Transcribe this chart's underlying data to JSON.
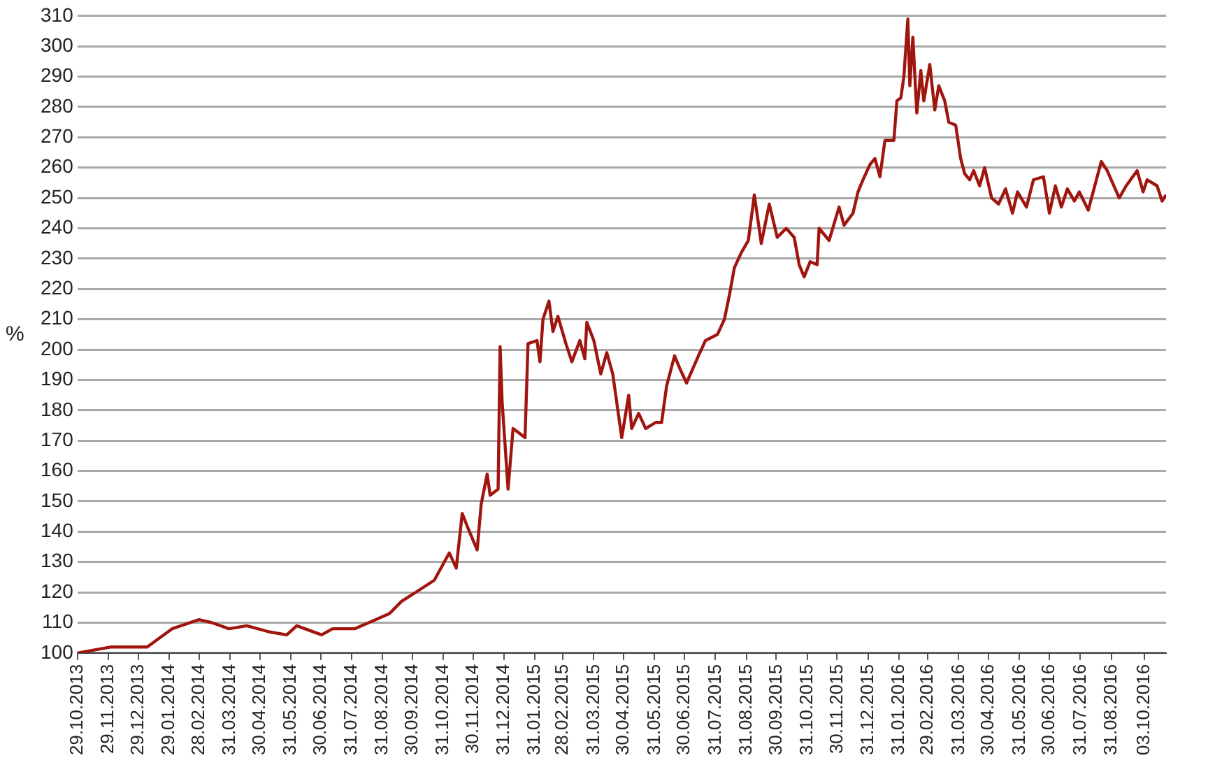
{
  "chart_data": {
    "type": "line",
    "ylabel": "%",
    "x": [
      "2013-10-29",
      "2013-12-02",
      "2013-12-26",
      "2014-01-07",
      "2014-02-01",
      "2014-02-28",
      "2014-03-13",
      "2014-03-30",
      "2014-04-17",
      "2014-05-09",
      "2014-05-27",
      "2014-06-06",
      "2014-07-01",
      "2014-07-12",
      "2014-08-03",
      "2014-08-24",
      "2014-09-07",
      "2014-09-19",
      "2014-10-08",
      "2014-10-22",
      "2014-11-06",
      "2014-11-13",
      "2014-11-19",
      "2014-11-25",
      "2014-12-04",
      "2014-12-08",
      "2014-12-14",
      "2014-12-17",
      "2014-12-25",
      "2014-12-27",
      "2014-12-29",
      "2015-01-04",
      "2015-01-09",
      "2015-01-21",
      "2015-01-24",
      "2015-02-02",
      "2015-02-05",
      "2015-02-08",
      "2015-02-14",
      "2015-02-18",
      "2015-02-23",
      "2015-03-03",
      "2015-03-09",
      "2015-03-17",
      "2015-03-22",
      "2015-03-24",
      "2015-03-31",
      "2015-04-07",
      "2015-04-13",
      "2015-04-19",
      "2015-04-28",
      "2015-05-05",
      "2015-05-08",
      "2015-05-15",
      "2015-05-22",
      "2015-06-01",
      "2015-06-07",
      "2015-06-12",
      "2015-06-20",
      "2015-06-25",
      "2015-07-02",
      "2015-07-14",
      "2015-07-21",
      "2015-08-02",
      "2015-08-09",
      "2015-08-14",
      "2015-08-19",
      "2015-08-26",
      "2015-09-02",
      "2015-09-08",
      "2015-09-15",
      "2015-09-23",
      "2015-10-01",
      "2015-10-10",
      "2015-10-18",
      "2015-10-23",
      "2015-10-28",
      "2015-11-03",
      "2015-11-10",
      "2015-11-12",
      "2015-11-22",
      "2015-12-02",
      "2015-12-07",
      "2015-12-16",
      "2015-12-21",
      "2015-12-26",
      "2016-01-02",
      "2016-01-07",
      "2016-01-12",
      "2016-01-17",
      "2016-01-26",
      "2016-01-29",
      "2016-02-02",
      "2016-02-05",
      "2016-02-09",
      "2016-02-11",
      "2016-02-14",
      "2016-02-18",
      "2016-02-22",
      "2016-02-25",
      "2016-03-02",
      "2016-03-07",
      "2016-03-11",
      "2016-03-17",
      "2016-03-21",
      "2016-03-28",
      "2016-04-02",
      "2016-04-06",
      "2016-04-11",
      "2016-04-15",
      "2016-04-21",
      "2016-04-26",
      "2016-05-03",
      "2016-05-10",
      "2016-05-17",
      "2016-05-24",
      "2016-05-29",
      "2016-06-07",
      "2016-06-14",
      "2016-06-24",
      "2016-06-30",
      "2016-07-06",
      "2016-07-12",
      "2016-07-18",
      "2016-07-25",
      "2016-07-30",
      "2016-08-08",
      "2016-08-21",
      "2016-08-27",
      "2016-09-08",
      "2016-09-15",
      "2016-09-26",
      "2016-10-02",
      "2016-10-06",
      "2016-10-16",
      "2016-10-21",
      "2016-10-25"
    ],
    "series": [
      {
        "color": "#a0160f",
        "values": [
          100,
          102,
          102,
          102,
          108,
          111,
          110,
          108,
          109,
          107,
          106,
          109,
          106,
          108,
          108,
          111,
          113,
          117,
          121,
          124,
          133,
          128,
          146,
          141,
          134,
          149,
          159,
          152,
          154,
          201,
          183,
          154,
          174,
          171,
          202,
          203,
          196,
          210,
          216,
          206,
          211,
          202,
          196,
          203,
          197,
          209,
          203,
          192,
          199,
          192,
          171,
          185,
          174,
          179,
          174,
          176,
          176,
          188,
          198,
          194,
          189,
          198,
          203,
          205,
          210,
          218,
          227,
          232,
          236,
          251,
          235,
          248,
          237,
          240,
          237,
          228,
          224,
          229,
          228,
          240,
          236,
          247,
          241,
          245,
          252,
          256,
          261,
          263,
          257,
          269,
          269,
          282,
          283,
          290,
          309,
          287,
          303,
          278,
          292,
          282,
          294,
          279,
          287,
          282,
          275,
          274,
          263,
          258,
          256,
          259,
          254,
          260,
          250,
          248,
          253,
          245,
          252,
          247,
          256,
          257,
          245,
          254,
          247,
          253,
          249,
          252,
          246,
          262,
          259,
          250,
          254,
          259,
          252,
          256,
          254,
          249,
          251
        ]
      }
    ],
    "xlim": [
      "2013-10-29",
      "2016-10-25"
    ],
    "xticks": [
      {
        "value": "2013-10-29",
        "label": "29.10.2013"
      },
      {
        "value": "2013-11-29",
        "label": "29.11.2013"
      },
      {
        "value": "2013-12-29",
        "label": "29.12.2013"
      },
      {
        "value": "2014-01-29",
        "label": "29.01.2014"
      },
      {
        "value": "2014-02-28",
        "label": "28.02.2014"
      },
      {
        "value": "2014-03-31",
        "label": "31.03.2014"
      },
      {
        "value": "2014-04-30",
        "label": "30.04.2014"
      },
      {
        "value": "2014-05-31",
        "label": "31.05.2014"
      },
      {
        "value": "2014-06-30",
        "label": "30.06.2014"
      },
      {
        "value": "2014-07-31",
        "label": "31.07.2014"
      },
      {
        "value": "2014-08-31",
        "label": "31.08.2014"
      },
      {
        "value": "2014-09-30",
        "label": "30.09.2014"
      },
      {
        "value": "2014-10-31",
        "label": "31.10.2014"
      },
      {
        "value": "2014-11-30",
        "label": "30.11.2014"
      },
      {
        "value": "2014-12-31",
        "label": "31.12.2014"
      },
      {
        "value": "2015-01-31",
        "label": "31.01.2015"
      },
      {
        "value": "2015-02-28",
        "label": "28.02.2015"
      },
      {
        "value": "2015-03-31",
        "label": "31.03.2015"
      },
      {
        "value": "2015-04-30",
        "label": "30.04.2015"
      },
      {
        "value": "2015-05-31",
        "label": "31.05.2015"
      },
      {
        "value": "2015-06-30",
        "label": "30.06.2015"
      },
      {
        "value": "2015-07-31",
        "label": "31.07.2015"
      },
      {
        "value": "2015-08-31",
        "label": "31.08.2015"
      },
      {
        "value": "2015-09-30",
        "label": "30.09.2015"
      },
      {
        "value": "2015-10-31",
        "label": "31.10.2015"
      },
      {
        "value": "2015-11-30",
        "label": "30.11.2015"
      },
      {
        "value": "2015-12-31",
        "label": "31.12.2015"
      },
      {
        "value": "2016-01-31",
        "label": "31.01.2016"
      },
      {
        "value": "2016-02-29",
        "label": "29.02.2016"
      },
      {
        "value": "2016-03-31",
        "label": "31.03.2016"
      },
      {
        "value": "2016-04-30",
        "label": "30.04.2016"
      },
      {
        "value": "2016-05-31",
        "label": "31.05.2016"
      },
      {
        "value": "2016-06-30",
        "label": "30.06.2016"
      },
      {
        "value": "2016-07-31",
        "label": "31.07.2016"
      },
      {
        "value": "2016-08-31",
        "label": "31.08.2016"
      },
      {
        "value": "2016-10-03",
        "label": "03.10.2016"
      }
    ],
    "ylim": [
      100,
      310
    ],
    "yticks": [
      100,
      110,
      120,
      130,
      140,
      150,
      160,
      170,
      180,
      190,
      200,
      210,
      220,
      230,
      240,
      250,
      260,
      270,
      280,
      290,
      300,
      310
    ],
    "grid": "y",
    "legend": false,
    "marker": "none",
    "line_style": "solid"
  }
}
